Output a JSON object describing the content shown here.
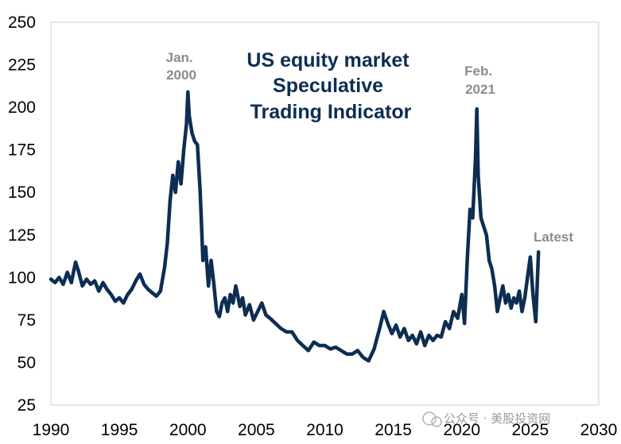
{
  "chart_data": {
    "type": "line",
    "title": [
      "US equity market",
      "Speculative",
      "Trading Indicator"
    ],
    "xlabel": "",
    "ylabel": "",
    "xlim": [
      1990,
      2030
    ],
    "ylim": [
      25,
      250
    ],
    "x_ticks": [
      1990,
      1995,
      2000,
      2005,
      2010,
      2015,
      2020,
      2025,
      2030
    ],
    "y_ticks": [
      25,
      50,
      75,
      100,
      125,
      150,
      175,
      200,
      225,
      250
    ],
    "grid": false,
    "line_color": "#0d2d52",
    "annotations": [
      {
        "lines": [
          "Jan.",
          "2000"
        ],
        "x": 2000.0,
        "y": 209
      },
      {
        "lines": [
          "Feb.",
          "2021"
        ],
        "x": 2021.1,
        "y": 199
      },
      {
        "lines": [
          "Latest"
        ],
        "x": 2025.7,
        "y": 115
      }
    ],
    "series": [
      {
        "x": [
          1990.0,
          1990.3,
          1990.6,
          1990.9,
          1991.2,
          1991.5,
          1991.8,
          1992.0,
          1992.3,
          1992.6,
          1992.9,
          1993.2,
          1993.5,
          1993.8,
          1994.1,
          1994.4,
          1994.7,
          1995.0,
          1995.3,
          1995.6,
          1995.9,
          1996.2,
          1996.5,
          1996.8,
          1997.1,
          1997.4,
          1997.7,
          1998.0,
          1998.3,
          1998.5,
          1998.7,
          1998.9,
          1999.1,
          1999.3,
          1999.5,
          1999.7,
          1999.9,
          2000.0,
          2000.1,
          2000.3,
          2000.5,
          2000.7,
          2000.9,
          2001.1,
          2001.3,
          2001.5,
          2001.7,
          2001.9,
          2002.1,
          2002.3,
          2002.5,
          2002.7,
          2002.9,
          2003.1,
          2003.3,
          2003.5,
          2003.8,
          2004.0,
          2004.2,
          2004.5,
          2004.8,
          2005.1,
          2005.4,
          2005.7,
          2006.0,
          2006.4,
          2006.8,
          2007.2,
          2007.6,
          2008.0,
          2008.4,
          2008.8,
          2009.2,
          2009.6,
          2010.0,
          2010.4,
          2010.8,
          2011.2,
          2011.6,
          2012.0,
          2012.4,
          2012.8,
          2013.2,
          2013.6,
          2014.0,
          2014.3,
          2014.6,
          2014.9,
          2015.2,
          2015.5,
          2015.8,
          2016.1,
          2016.4,
          2016.7,
          2017.0,
          2017.3,
          2017.6,
          2017.9,
          2018.2,
          2018.5,
          2018.8,
          2019.1,
          2019.4,
          2019.7,
          2020.0,
          2020.2,
          2020.4,
          2020.6,
          2020.8,
          2021.0,
          2021.1,
          2021.2,
          2021.4,
          2021.6,
          2021.8,
          2022.0,
          2022.2,
          2022.4,
          2022.6,
          2022.8,
          2023.0,
          2023.2,
          2023.4,
          2023.6,
          2023.8,
          2024.0,
          2024.2,
          2024.4,
          2024.6,
          2024.8,
          2025.0,
          2025.2,
          2025.4,
          2025.6
        ],
        "values": [
          99,
          97,
          100,
          96,
          103,
          97,
          109,
          104,
          95,
          99,
          96,
          98,
          92,
          97,
          93,
          90,
          86,
          88,
          85,
          90,
          93,
          98,
          102,
          96,
          93,
          91,
          89,
          92,
          106,
          120,
          145,
          160,
          150,
          168,
          155,
          175,
          190,
          209,
          195,
          185,
          180,
          178,
          150,
          110,
          118,
          95,
          110,
          96,
          80,
          77,
          85,
          88,
          80,
          90,
          85,
          95,
          83,
          88,
          78,
          84,
          75,
          80,
          85,
          78,
          76,
          73,
          70,
          68,
          68,
          63,
          60,
          57,
          62,
          60,
          60,
          58,
          59,
          57,
          55,
          55,
          57,
          53,
          51,
          58,
          70,
          80,
          73,
          67,
          72,
          65,
          70,
          63,
          66,
          61,
          68,
          60,
          66,
          63,
          66,
          65,
          74,
          70,
          80,
          76,
          90,
          73,
          110,
          140,
          135,
          170,
          199,
          160,
          135,
          130,
          125,
          110,
          105,
          95,
          80,
          88,
          95,
          85,
          90,
          82,
          88,
          85,
          92,
          80,
          88,
          100,
          112,
          90,
          74,
          115
        ]
      }
    ]
  },
  "watermark": "公众号 · 美股投资网"
}
